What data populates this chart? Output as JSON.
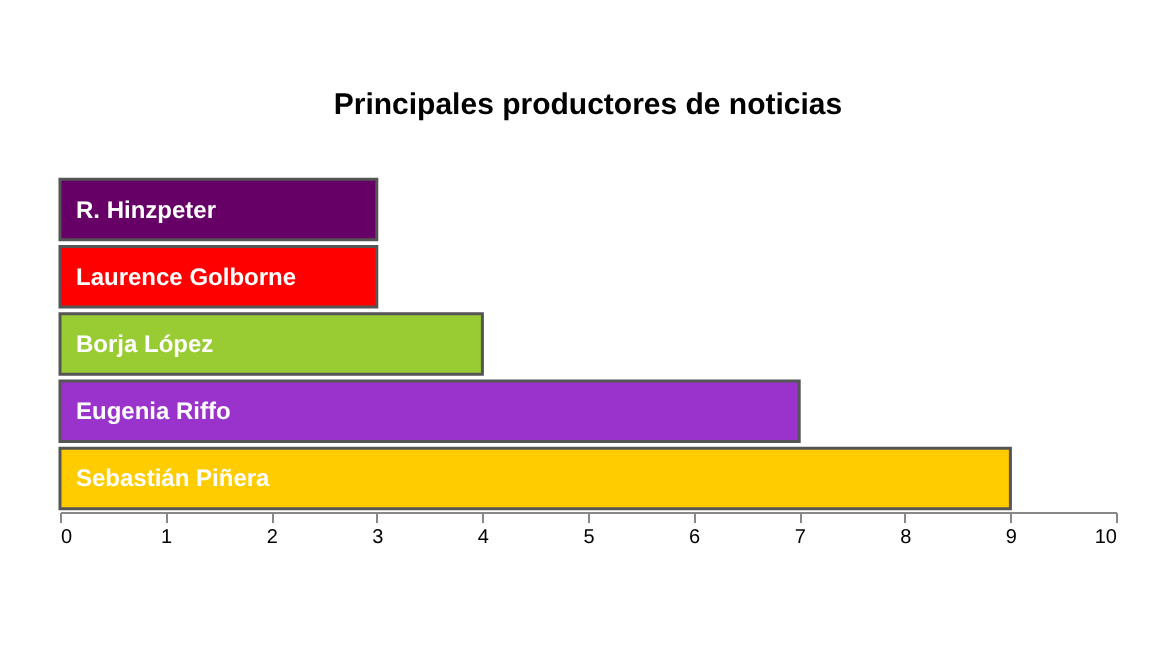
{
  "chart_data": {
    "type": "bar",
    "orientation": "horizontal",
    "title": "Principales productores de noticias",
    "categories": [
      "R. Hinzpeter",
      "Laurence Golborne",
      "Borja López",
      "Eugenia Riffo",
      "Sebastián Piñera"
    ],
    "values": [
      3,
      3,
      4,
      7,
      9
    ],
    "colors": [
      "#660066",
      "#ff0000",
      "#99cc33",
      "#9933cc",
      "#ffcc00"
    ],
    "xlim": [
      0,
      10
    ],
    "xticks": [
      0,
      1,
      2,
      3,
      4,
      5,
      6,
      7,
      8,
      9,
      10
    ],
    "grid": false,
    "legend": false
  }
}
